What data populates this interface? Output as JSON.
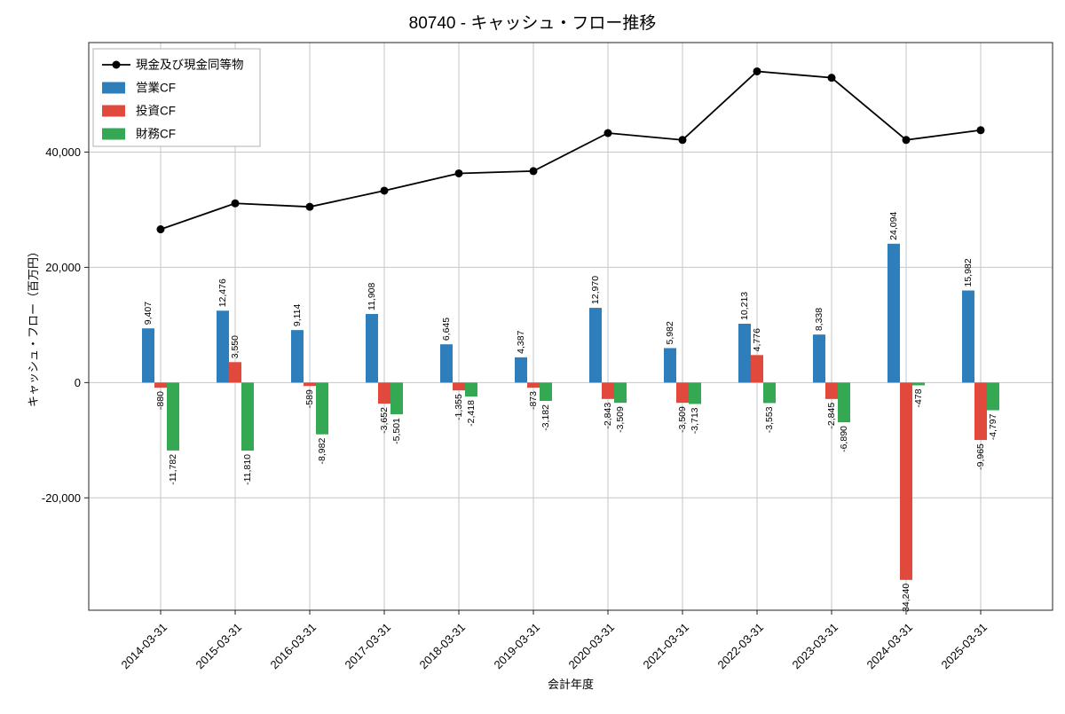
{
  "title": "80740 - キャッシュ・フロー推移",
  "chart_data": {
    "type": "bar",
    "title": "80740 - キャッシュ・フロー推移",
    "xlabel": "会計年度",
    "ylabel": "キャッシュ・フロー（百万円）",
    "ylim": [
      -39500,
      59000
    ],
    "yticks": [
      -20000,
      0,
      20000,
      40000
    ],
    "grid": true,
    "legend_position": "upper left",
    "categories": [
      "2014-03-31",
      "2015-03-31",
      "2016-03-31",
      "2017-03-31",
      "2018-03-31",
      "2019-03-31",
      "2020-03-31",
      "2021-03-31",
      "2022-03-31",
      "2023-03-31",
      "2024-03-31",
      "2025-03-31"
    ],
    "series": [
      {
        "name": "現金及び現金同等物",
        "type": "line",
        "color": "#000000",
        "marker": "circle",
        "values": [
          26600,
          31100,
          30500,
          33300,
          36300,
          36700,
          43300,
          42100,
          54000,
          52900,
          42100,
          43800
        ]
      },
      {
        "name": "営業CF",
        "type": "bar",
        "color": "#2e7ebc",
        "values": [
          9407,
          12476,
          9114,
          11908,
          6645,
          4387,
          12970,
          5982,
          10213,
          8338,
          24094,
          15982
        ]
      },
      {
        "name": "投資CF",
        "type": "bar",
        "color": "#e2493d",
        "values": [
          -880,
          3550,
          -589,
          -3652,
          -1355,
          -873,
          -2843,
          -3509,
          4776,
          -2845,
          -34240,
          -9965
        ]
      },
      {
        "name": "財務CF",
        "type": "bar",
        "color": "#35a854",
        "values": [
          -11782,
          -11810,
          -8982,
          -5501,
          -2418,
          -3182,
          -3509,
          -3713,
          -3553,
          -6890,
          -478,
          -4797
        ]
      }
    ]
  }
}
